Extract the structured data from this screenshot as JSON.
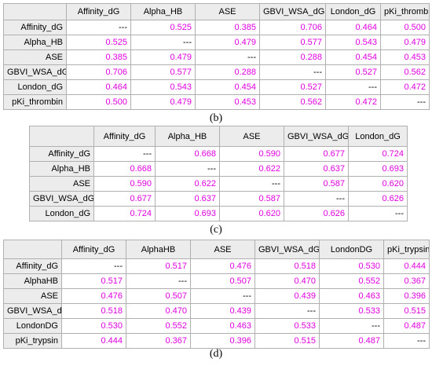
{
  "tables": [
    {
      "caption": "(b)",
      "columns": [
        "Affinity_dG",
        "Alpha_HB",
        "ASE",
        "GBVI_WSA_dG",
        "London_dG",
        "pKi_thrombin"
      ],
      "rows": [
        {
          "label": "Affinity_dG",
          "cells": [
            "---",
            "0.525",
            "0.385",
            "0.706",
            "0.464",
            "0.500"
          ]
        },
        {
          "label": "Alpha_HB",
          "cells": [
            "0.525",
            "---",
            "0.479",
            "0.577",
            "0.543",
            "0.479"
          ]
        },
        {
          "label": "ASE",
          "cells": [
            "0.385",
            "0.479",
            "---",
            "0.288",
            "0.454",
            "0.453"
          ]
        },
        {
          "label": "GBVI_WSA_dG",
          "cells": [
            "0.706",
            "0.577",
            "0.288",
            "---",
            "0.527",
            "0.562"
          ]
        },
        {
          "label": "London_dG",
          "cells": [
            "0.464",
            "0.543",
            "0.454",
            "0.527",
            "---",
            "0.472"
          ]
        },
        {
          "label": "pKi_thrombin",
          "cells": [
            "0.500",
            "0.479",
            "0.453",
            "0.562",
            "0.472",
            "---"
          ]
        }
      ]
    },
    {
      "caption": "(c)",
      "columns": [
        "Affinity_dG",
        "Alpha_HB",
        "ASE",
        "GBVI_WSA_dG",
        "London_dG"
      ],
      "rows": [
        {
          "label": "Affinity_dG",
          "cells": [
            "---",
            "0.668",
            "0.590",
            "0.677",
            "0.724"
          ]
        },
        {
          "label": "Alpha_HB",
          "cells": [
            "0.668",
            "---",
            "0.622",
            "0.637",
            "0.693"
          ]
        },
        {
          "label": "ASE",
          "cells": [
            "0.590",
            "0.622",
            "---",
            "0.587",
            "0.620"
          ]
        },
        {
          "label": "GBVI_WSA_dG",
          "cells": [
            "0.677",
            "0.637",
            "0.587",
            "---",
            "0.626"
          ]
        },
        {
          "label": "London_dG",
          "cells": [
            "0.724",
            "0.693",
            "0.620",
            "0.626",
            "---"
          ]
        }
      ]
    },
    {
      "caption": "(d)",
      "columns": [
        "Affinity_dG",
        "AlphaHB",
        "ASE",
        "GBVI_WSA_dG",
        "LondonDG",
        "pKi_trypsin"
      ],
      "rows": [
        {
          "label": "Affinity_dG",
          "cells": [
            "---",
            "0.517",
            "0.476",
            "0.518",
            "0.530",
            "0.444"
          ]
        },
        {
          "label": "AlphaHB",
          "cells": [
            "0.517",
            "---",
            "0.507",
            "0.470",
            "0.552",
            "0.367"
          ]
        },
        {
          "label": "ASE",
          "cells": [
            "0.476",
            "0.507",
            "---",
            "0.439",
            "0.463",
            "0.396"
          ]
        },
        {
          "label": "GBVI_WSA_dG",
          "cells": [
            "0.518",
            "0.470",
            "0.439",
            "---",
            "0.533",
            "0.515"
          ]
        },
        {
          "label": "LondonDG",
          "cells": [
            "0.530",
            "0.552",
            "0.463",
            "0.533",
            "---",
            "0.487"
          ]
        },
        {
          "label": "pKi_trypsin",
          "cells": [
            "0.444",
            "0.367",
            "0.396",
            "0.515",
            "0.487",
            "---"
          ]
        }
      ]
    }
  ]
}
